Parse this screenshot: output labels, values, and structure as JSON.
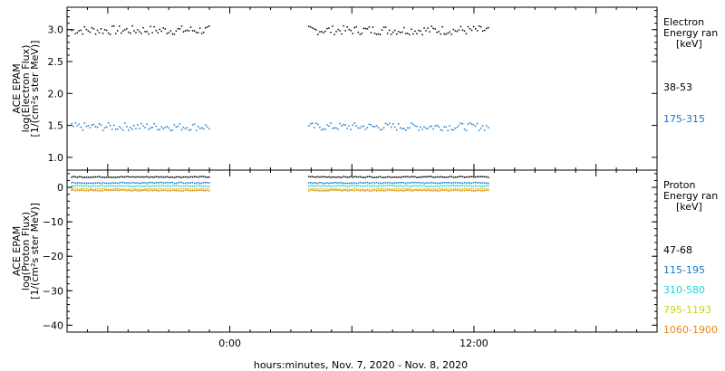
{
  "x_axis": {
    "label": "hours:minutes, Nov.  7, 2020 - Nov.  8, 2020",
    "ticks": [
      "0:00",
      "12:00"
    ]
  },
  "chart_data": [
    {
      "type": "scatter",
      "panel": "electron",
      "ylabel": [
        "ACE EPAM",
        "log(Electron Flux)",
        "[1/(cm²s ster MeV)]"
      ],
      "ylim": [
        0.8,
        3.35
      ],
      "yticks": [
        "1.0",
        "1.5",
        "2.0",
        "2.5",
        "3.0"
      ],
      "yticks_values": [
        1.0,
        1.5,
        2.0,
        2.5,
        3.0
      ],
      "xlim_hours": [
        -8,
        21
      ],
      "gap_hours": [
        -1,
        3.75
      ],
      "legend_title": [
        "Electron",
        "Energy ran",
        "[keV]"
      ],
      "series": [
        {
          "name": "38-53",
          "color": "#000000",
          "level": 3.0,
          "spread": 0.07,
          "segments": [
            [
              -7.8,
              -1.0
            ],
            [
              3.85,
              12.7
            ]
          ]
        },
        {
          "name": "175-315",
          "color": "#1a78c8",
          "level": 1.49,
          "spread": 0.06,
          "segments": [
            [
              -7.8,
              -1.0
            ],
            [
              3.85,
              12.7
            ]
          ]
        }
      ]
    },
    {
      "type": "scatter",
      "panel": "proton",
      "ylabel": [
        "ACE EPAM",
        "log(Proton Flux)",
        "[1/(cm²s ster MeV)]"
      ],
      "ylim": [
        -42,
        5
      ],
      "yticks": [
        "0",
        "−10",
        "−20",
        "−30",
        "−40"
      ],
      "yticks_values": [
        0,
        -10,
        -20,
        -30,
        -40
      ],
      "xlim_hours": [
        -8,
        21
      ],
      "gap_hours": [
        -1,
        3.75
      ],
      "legend_title": [
        "Proton",
        "Energy ran",
        "[keV]"
      ],
      "series": [
        {
          "name": "47-68",
          "color": "#000000",
          "level": 3.2,
          "spread": 0.15,
          "segments": [
            [
              -7.8,
              -1.0
            ],
            [
              3.85,
              12.7
            ]
          ]
        },
        {
          "name": "115-195",
          "color": "#1a78c8",
          "level": 1.5,
          "spread": 0.15,
          "segments": [
            [
              -7.8,
              -1.0
            ],
            [
              3.85,
              12.7
            ]
          ]
        },
        {
          "name": "310-580",
          "color": "#19d2d2",
          "level": 0.6,
          "spread": 0.15,
          "segments": [
            [
              -7.8,
              -1.0
            ],
            [
              3.85,
              12.7
            ]
          ]
        },
        {
          "name": "795-1193",
          "color": "#d2d219",
          "level": -0.3,
          "spread": 0.15,
          "segments": [
            [
              -7.8,
              -1.0
            ],
            [
              3.85,
              12.7
            ]
          ]
        },
        {
          "name": "1060-1900",
          "color": "#e68a19",
          "level": -0.7,
          "spread": 0.15,
          "segments": [
            [
              -7.8,
              -1.0
            ],
            [
              3.85,
              12.7
            ]
          ]
        }
      ]
    }
  ]
}
